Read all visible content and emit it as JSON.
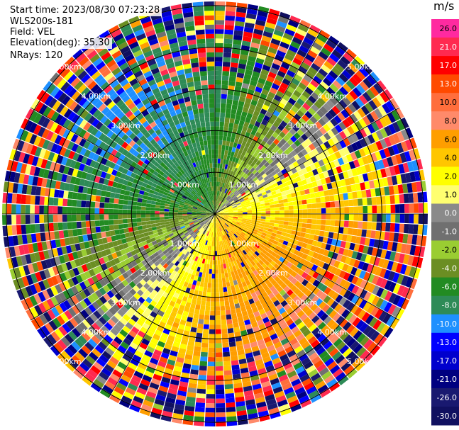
{
  "header": {
    "start_time": "Start time: 2023/08/30 07:23:28",
    "instrument": "WLS200s-181",
    "field": "Field: VEL",
    "elevation": "Elevation(deg): 35.30",
    "nrays": "NRays: 120"
  },
  "colorbar": {
    "units": "m/s",
    "labels": [
      "26.0",
      "21.0",
      "17.0",
      "13.0",
      "10.0",
      "8.0",
      "6.0",
      "4.0",
      "2.0",
      "1.0",
      "0.0",
      "-1.0",
      "-2.0",
      "-4.0",
      "-6.0",
      "-8.0",
      "-10.0",
      "-13.0",
      "-17.0",
      "-21.0",
      "-26.0",
      "-30.0"
    ],
    "colors": [
      "#ff2aa0",
      "#ff2a50",
      "#ff0000",
      "#ff4a00",
      "#ff6e3c",
      "#ff8a6a",
      "#ff9e00",
      "#ffc600",
      "#ffff00",
      "#ffff70",
      "#8a8a8a",
      "#707070",
      "#9acd32",
      "#6b8e23",
      "#228b22",
      "#2e8b57",
      "#1e90ff",
      "#0000ff",
      "#0000cd",
      "#000080",
      "#191970",
      "#101060"
    ]
  },
  "chart_data": {
    "type": "heatmap",
    "title": "",
    "projection": "polar-ppi",
    "nrays": 120,
    "range_unit": "km",
    "range_rings_km": [
      1.0,
      2.0,
      3.0,
      4.0,
      5.0
    ],
    "ring_labels": [
      "1.00km",
      "2.00km",
      "3.00km",
      "4.00km",
      "5.00km"
    ],
    "max_range_km": 5.1,
    "value_range": [
      -30.0,
      26.0
    ],
    "pattern": {
      "north_west": "negative velocities (-2 to -8 m/s)",
      "south_east": "positive velocities (2 to 10 m/s)",
      "far_range": "noise"
    }
  }
}
